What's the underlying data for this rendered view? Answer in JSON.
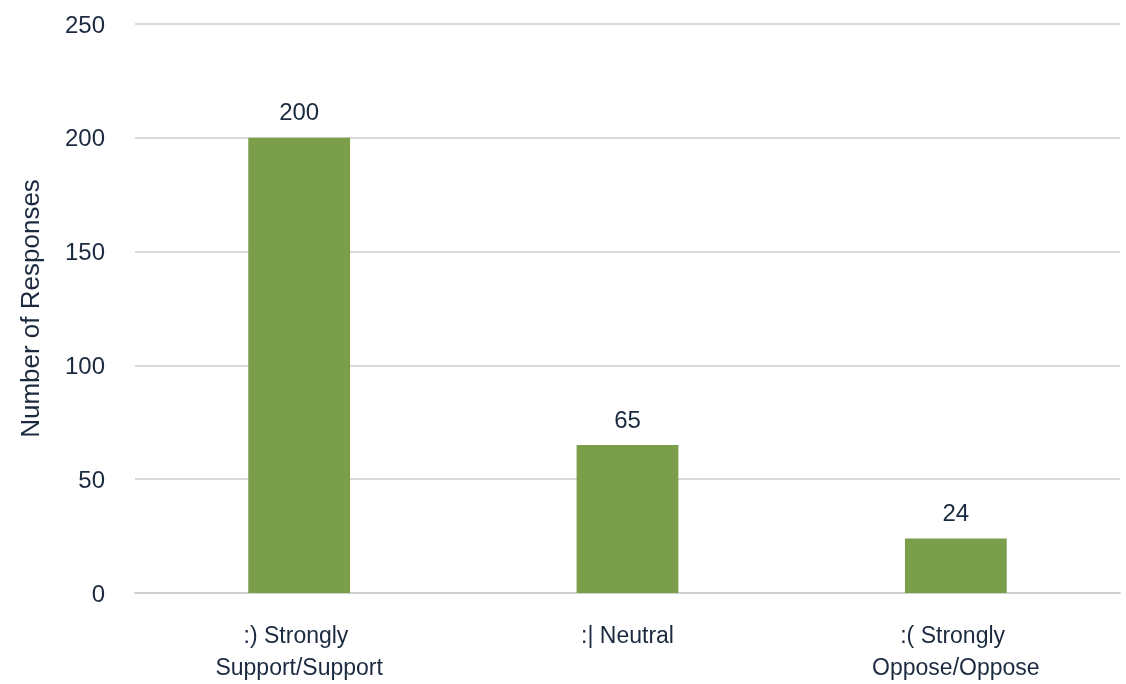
{
  "chart_data": {
    "type": "bar",
    "ylabel": "Number of Responses",
    "categories": [
      ":) Strongly Support/Support",
      ":| Neutral",
      ":( Strongly Oppose/Oppose"
    ],
    "values": [
      200,
      65,
      24
    ],
    "color": "#7a9e4a",
    "data_labels": true,
    "ylim": [
      0,
      250
    ],
    "yticks": [
      0,
      50,
      100,
      150,
      200,
      250
    ],
    "grid": "y"
  }
}
